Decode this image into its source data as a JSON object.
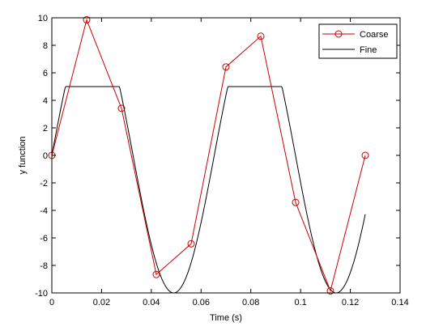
{
  "chart_data": {
    "type": "line",
    "xlabel": "Time (s)",
    "ylabel": "y function",
    "xlim": [
      0,
      0.14
    ],
    "ylim": [
      -10,
      10
    ],
    "x_ticks": [
      0,
      0.02,
      0.04,
      0.06,
      0.08,
      0.1,
      0.12,
      0.14
    ],
    "x_tick_labels": [
      "0",
      "0.02",
      "0.04",
      "0.06",
      "0.08",
      "0.1",
      "0.12",
      "0.14"
    ],
    "y_ticks": [
      -10,
      -8,
      -6,
      -4,
      -2,
      0,
      2,
      4,
      6,
      8,
      10
    ],
    "y_tick_labels": [
      "-10",
      "-8",
      "-6",
      "-4",
      "-2",
      "0",
      "2",
      "4",
      "6",
      "8",
      "10"
    ],
    "grid": false,
    "legend": {
      "position": "top-right",
      "entries": [
        "Coarse",
        "Fine"
      ]
    },
    "series": [
      {
        "name": "Coarse",
        "color": "#cc0000",
        "marker": "circle",
        "x": [
          0,
          0.014,
          0.028,
          0.042,
          0.056,
          0.07,
          0.084,
          0.098,
          0.112,
          0.126
        ],
        "y": [
          0,
          9.85,
          3.42,
          -8.66,
          -6.43,
          6.43,
          8.66,
          -3.42,
          -9.85,
          0
        ]
      },
      {
        "name": "Fine",
        "color": "#000000",
        "marker": "none",
        "function": "clipped_sine",
        "amplitude": 10,
        "period": 0.0653,
        "clip_upper": 5,
        "x_start": 0,
        "x_end": 0.126
      }
    ]
  }
}
